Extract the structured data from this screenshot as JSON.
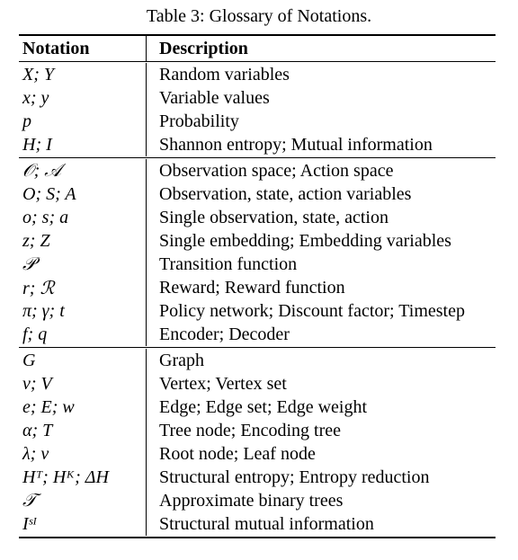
{
  "caption": "Table 3: Glossary of Notations.",
  "headers": {
    "notation": "Notation",
    "description": "Description"
  },
  "groups": [
    {
      "rows": [
        {
          "notation": "X; Y",
          "description": "Random variables"
        },
        {
          "notation": "x; y",
          "description": "Variable values"
        },
        {
          "notation": "p",
          "description": "Probability"
        },
        {
          "notation": "H; I",
          "description": "Shannon entropy; Mutual information"
        }
      ]
    },
    {
      "rows": [
        {
          "notation": "𝒪; 𝒜",
          "description": "Observation space; Action space"
        },
        {
          "notation": "O; S; A",
          "description": "Observation, state, action variables"
        },
        {
          "notation": "o; s; a",
          "description": "Single observation, state, action"
        },
        {
          "notation": "z; Z",
          "description": "Single embedding; Embedding variables"
        },
        {
          "notation": "𝒫",
          "description": "Transition function"
        },
        {
          "notation": "r; ℛ",
          "description": "Reward; Reward function"
        },
        {
          "notation": "π; γ; t",
          "description": "Policy network; Discount factor; Timestep"
        },
        {
          "notation": "f; q",
          "description": "Encoder; Decoder"
        }
      ]
    },
    {
      "rows": [
        {
          "notation": "G",
          "description": "Graph"
        },
        {
          "notation": "v; V",
          "description": "Vertex; Vertex set"
        },
        {
          "notation": "e; E; w",
          "description": "Edge; Edge set; Edge weight"
        },
        {
          "notation": "α; T",
          "description": "Tree node; Encoding tree"
        },
        {
          "notation": "λ; ν",
          "description": "Root node; Leaf node"
        },
        {
          "notation": "Hᵀ; Hᴷ; ΔH",
          "description": "Structural entropy; Entropy reduction"
        },
        {
          "notation": "𝒯",
          "description": "Approximate binary trees"
        },
        {
          "notation": "Iˢᴵ",
          "description": "Structural mutual information"
        }
      ]
    }
  ]
}
